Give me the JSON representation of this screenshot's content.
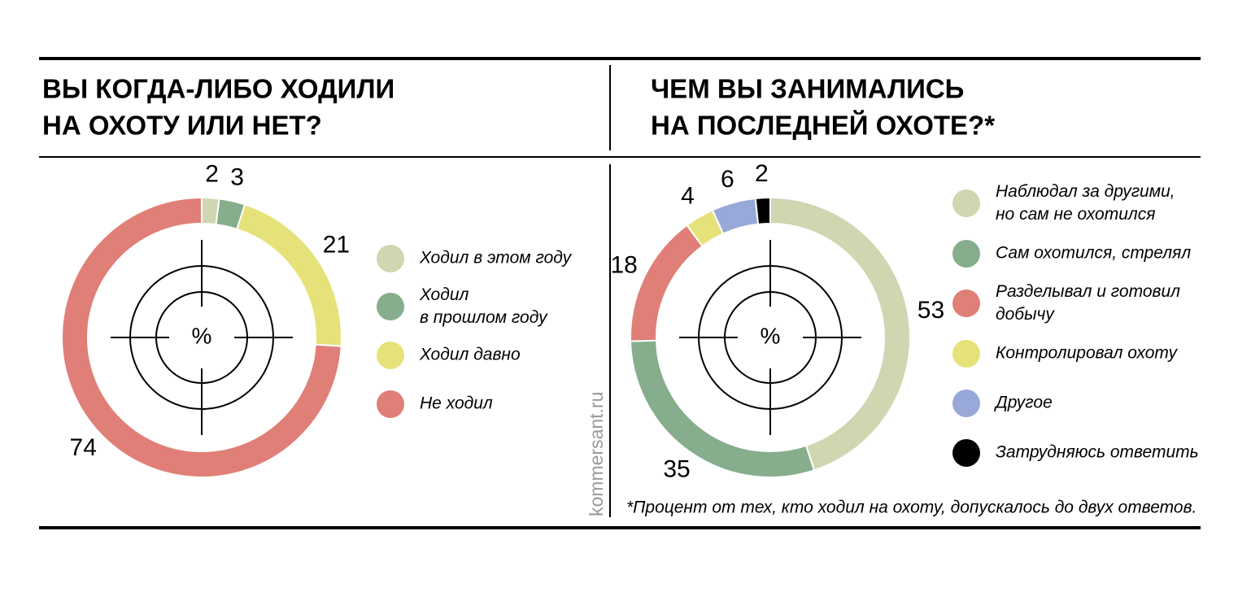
{
  "watermark": "kommersant.ru",
  "chart_data": [
    {
      "type": "pie",
      "title": "ВЫ КОГДА-ЛИБО ХОДИЛИ\nНА ОХОТУ ИЛИ НЕТ?",
      "center_label": "%",
      "categories": [
        "Ходил в этом году",
        "Ходил\nв прошлом году",
        "Ходил давно",
        "Не ходил"
      ],
      "values": [
        2,
        3,
        21,
        74
      ],
      "colors": [
        "#cfd6b0",
        "#86ad8c",
        "#e6e27a",
        "#e07f77"
      ]
    },
    {
      "type": "pie",
      "title": "ЧЕМ ВЫ ЗАНИМАЛИСЬ\nНА ПОСЛЕДНЕЙ ОХОТЕ?*",
      "center_label": "%",
      "categories": [
        "Наблюдал за другими,\nно сам не охотился",
        "Сам охотился, стрелял",
        "Разделывал и готовил\nдобычу",
        "Контролировал охоту",
        "Другое",
        "Затрудняюсь ответить"
      ],
      "values": [
        53,
        35,
        18,
        4,
        6,
        2
      ],
      "colors": [
        "#cfd6b0",
        "#86ad8c",
        "#e07f77",
        "#e6e27a",
        "#98a8d8",
        "#000000"
      ],
      "note": "*Процент от тех, кто ходил на охоту, допускалось до двух ответов."
    }
  ]
}
